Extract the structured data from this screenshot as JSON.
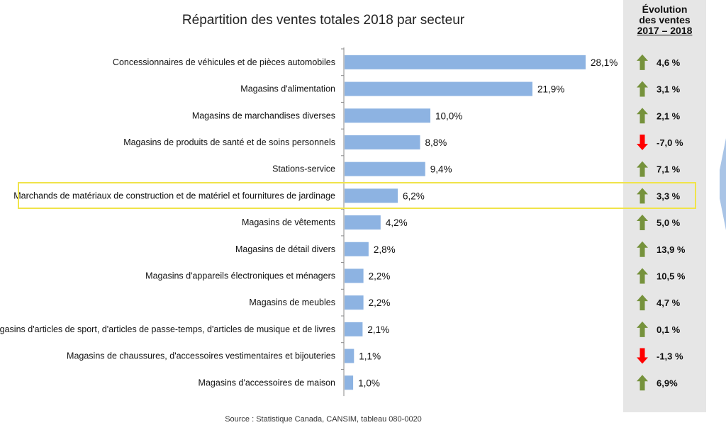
{
  "chart_data": {
    "type": "bar",
    "orientation": "horizontal",
    "title": "Répartition des ventes totales 2018 par secteur",
    "categories": [
      "Concessionnaires de véhicules et de pièces automobiles",
      "Magasins d'alimentation",
      "Magasins de marchandises diverses",
      "Magasins de produits de santé et de soins personnels",
      "Stations-service",
      "Marchands de matériaux de construction et de matériel et fournitures de jardinage",
      "Magasins de vêtements",
      "Magasins de détail divers",
      "Magasins d'appareils électroniques et ménagers",
      "Magasins de meubles",
      "Magasins d'articles de sport, d'articles de passe-temps, d'articles de musique et de livres",
      "Magasins de chaussures, d'accessoires vestimentaires et bijouteries",
      "Magasins d'accessoires de maison"
    ],
    "values": [
      28.1,
      21.9,
      10.0,
      8.8,
      9.4,
      6.2,
      4.2,
      2.8,
      2.2,
      2.2,
      2.1,
      1.1,
      1.0
    ],
    "value_labels": [
      "28,1%",
      "21,9%",
      "10,0%",
      "8,8%",
      "9,4%",
      "6,2%",
      "4,2%",
      "2,8%",
      "2,2%",
      "2,2%",
      "2,1%",
      "1,1%",
      "1,0%"
    ],
    "bar_color": "#8db3e2",
    "highlighted_index": 5,
    "highlight_color": "#f0e44a",
    "evolution": {
      "header_lines": [
        "Évolution",
        "des ventes",
        "2017 – 2018"
      ],
      "values": [
        4.6,
        3.1,
        2.1,
        -7.0,
        7.1,
        3.3,
        5.0,
        13.9,
        10.5,
        4.7,
        0.1,
        -1.3,
        6.9
      ],
      "labels": [
        "4,6 %",
        "3,1 %",
        "2,1 %",
        "-7,0 %",
        "7,1 %",
        "3,3 %",
        "5,0 %",
        "13,9 %",
        "10,5 %",
        "4,7 %",
        "0,1 %",
        "-1,3 %",
        "6,9%"
      ],
      "up_color": "#76923c",
      "down_color": "#ff0000"
    },
    "xlim": [
      0,
      30
    ],
    "grid": false,
    "legend": "none"
  },
  "source": "Source : Statistique Canada, CANSIM, tableau 080-0020"
}
